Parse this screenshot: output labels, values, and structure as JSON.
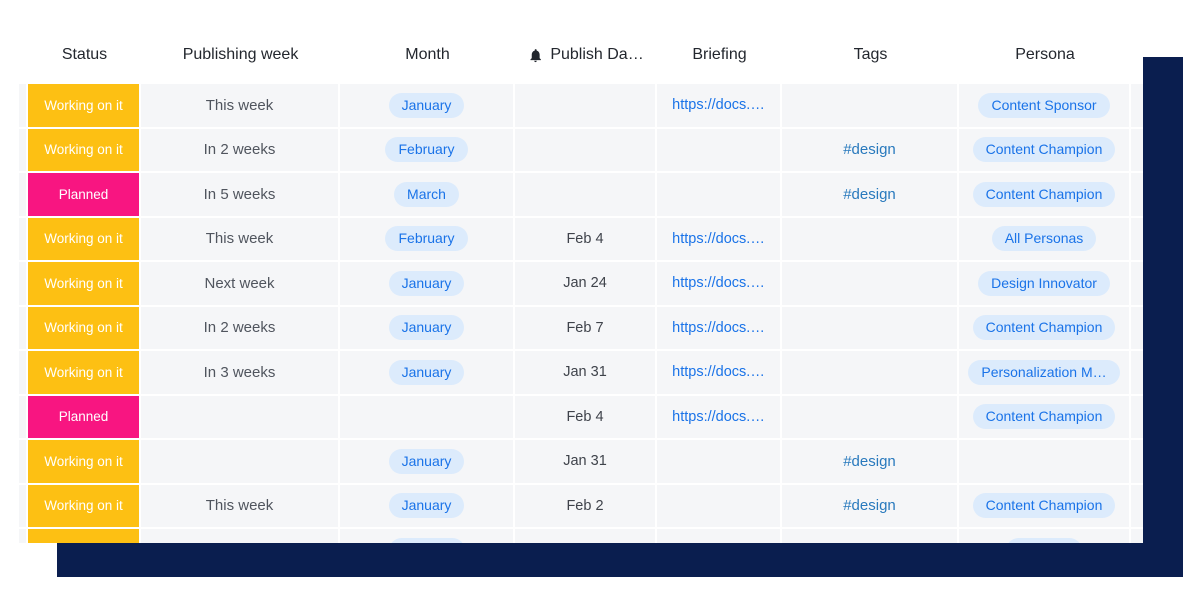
{
  "colors": {
    "navy_panel": "#0a1e4f",
    "status_yellow": "#fdc013",
    "status_pink": "#f81581",
    "pill_background": "#dcebfc",
    "link_blue": "#1a73e8",
    "tag_blue": "#2879bd",
    "row_background": "#f5f6f8"
  },
  "table": {
    "columns": [
      {
        "id": "status",
        "label": "Status"
      },
      {
        "id": "week",
        "label": "Publishing week"
      },
      {
        "id": "month",
        "label": "Month"
      },
      {
        "id": "date",
        "label": "Publish Da…",
        "icon": "bell-icon"
      },
      {
        "id": "briefing",
        "label": "Briefing"
      },
      {
        "id": "tags",
        "label": "Tags"
      },
      {
        "id": "persona",
        "label": "Persona"
      }
    ],
    "rows": [
      {
        "status": "Working on it",
        "status_color": "yellow",
        "week": "This week",
        "month": "January",
        "date": "",
        "briefing": "https://docs.…",
        "tags": "",
        "persona": "Content Sponsor"
      },
      {
        "status": "Working on it",
        "status_color": "yellow",
        "week": "In 2 weeks",
        "month": "February",
        "date": "",
        "briefing": "",
        "tags": "#design",
        "persona": "Content Champion"
      },
      {
        "status": "Planned",
        "status_color": "pink",
        "week": "In 5 weeks",
        "month": "March",
        "date": "",
        "briefing": "",
        "tags": "#design",
        "persona": "Content Champion"
      },
      {
        "status": "Working on it",
        "status_color": "yellow",
        "week": "This week",
        "month": "February",
        "date": "Feb 4",
        "briefing": "https://docs.…",
        "tags": "",
        "persona": "All Personas"
      },
      {
        "status": "Working on it",
        "status_color": "yellow",
        "week": "Next week",
        "month": "January",
        "date": "Jan 24",
        "briefing": "https://docs.…",
        "tags": "",
        "persona": "Design Innovator"
      },
      {
        "status": "Working on it",
        "status_color": "yellow",
        "week": "In 2 weeks",
        "month": "January",
        "date": "Feb 7",
        "briefing": "https://docs.…",
        "tags": "",
        "persona": "Content Champion"
      },
      {
        "status": "Working on it",
        "status_color": "yellow",
        "week": "In 3 weeks",
        "month": "January",
        "date": "Jan 31",
        "briefing": "https://docs.…",
        "tags": "",
        "persona": "Personalization M…"
      },
      {
        "status": "Planned",
        "status_color": "pink",
        "week": "",
        "month": "",
        "date": "Feb 4",
        "briefing": "https://docs.…",
        "tags": "",
        "persona": "Content Champion"
      },
      {
        "status": "Working on it",
        "status_color": "yellow",
        "week": "",
        "month": "January",
        "date": "Jan 31",
        "briefing": "",
        "tags": "#design",
        "persona": ""
      },
      {
        "status": "Working on it",
        "status_color": "yellow",
        "week": "This week",
        "month": "January",
        "date": "Feb 2",
        "briefing": "",
        "tags": "#design",
        "persona": "Content Champion"
      }
    ],
    "partial_row": {
      "status_color": "yellow",
      "has_month_pill": true,
      "has_persona_pill": true
    }
  }
}
